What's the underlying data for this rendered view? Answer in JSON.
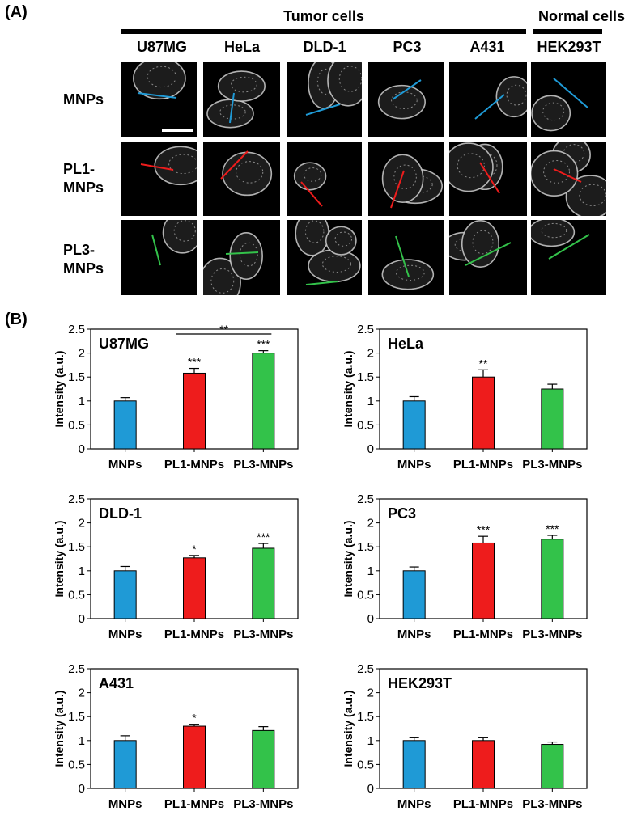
{
  "panel_a": {
    "label": "(A)",
    "groups": [
      {
        "label": "Tumor cells"
      },
      {
        "label": "Normal cells"
      }
    ],
    "columns": [
      "U87MG",
      "HeLa",
      "DLD-1",
      "PC3",
      "A431",
      "HEK293T"
    ],
    "rows": [
      {
        "lines": [
          "MNPs"
        ],
        "line_color": "#1f9ad6"
      },
      {
        "lines": [
          "PL1-",
          "MNPs"
        ],
        "line_color": "#ee1c1c"
      },
      {
        "lines": [
          "PL3-",
          "MNPs"
        ],
        "line_color": "#33c24a"
      }
    ]
  },
  "panel_b": {
    "label": "(B)"
  },
  "chart_data": [
    {
      "type": "bar",
      "title": "U87MG",
      "categories": [
        "MNPs",
        "PL1-MNPs",
        "PL3-MNPs"
      ],
      "values": [
        1.0,
        1.58,
        2.0
      ],
      "errors": [
        0.07,
        0.1,
        0.05
      ],
      "significance": [
        "",
        "***",
        "***"
      ],
      "bracket": {
        "from": 1,
        "to": 2,
        "label": "**"
      },
      "colors": [
        "#1f9ad6",
        "#ee1c1c",
        "#33c24a"
      ],
      "ylabel": "Intensity (a.u.)",
      "ylim": [
        0,
        2.5
      ],
      "yticks": [
        "0",
        "0.5",
        "1",
        "1.5",
        "2",
        "2.5"
      ]
    },
    {
      "type": "bar",
      "title": "HeLa",
      "categories": [
        "MNPs",
        "PL1-MNPs",
        "PL3-MNPs"
      ],
      "values": [
        1.0,
        1.5,
        1.25
      ],
      "errors": [
        0.09,
        0.15,
        0.1
      ],
      "significance": [
        "",
        "**",
        ""
      ],
      "colors": [
        "#1f9ad6",
        "#ee1c1c",
        "#33c24a"
      ],
      "ylabel": "Intensity (a.u.)",
      "ylim": [
        0,
        2.5
      ],
      "yticks": [
        "0",
        "0.5",
        "1",
        "1.5",
        "2",
        "2.5"
      ]
    },
    {
      "type": "bar",
      "title": "DLD-1",
      "categories": [
        "MNPs",
        "PL1-MNPs",
        "PL3-MNPs"
      ],
      "values": [
        1.0,
        1.27,
        1.47
      ],
      "errors": [
        0.09,
        0.05,
        0.1
      ],
      "significance": [
        "",
        "*",
        "***"
      ],
      "colors": [
        "#1f9ad6",
        "#ee1c1c",
        "#33c24a"
      ],
      "ylabel": "Intensity (a.u.)",
      "ylim": [
        0,
        2.5
      ],
      "yticks": [
        "0",
        "0.5",
        "1",
        "1.5",
        "2",
        "2.5"
      ]
    },
    {
      "type": "bar",
      "title": "PC3",
      "categories": [
        "MNPs",
        "PL1-MNPs",
        "PL3-MNPs"
      ],
      "values": [
        1.0,
        1.58,
        1.66
      ],
      "errors": [
        0.08,
        0.14,
        0.08
      ],
      "significance": [
        "",
        "***",
        "***"
      ],
      "colors": [
        "#1f9ad6",
        "#ee1c1c",
        "#33c24a"
      ],
      "ylabel": "Intensity (a.u.)",
      "ylim": [
        0,
        2.5
      ],
      "yticks": [
        "0",
        "0.5",
        "1",
        "1.5",
        "2",
        "2.5"
      ]
    },
    {
      "type": "bar",
      "title": "A431",
      "categories": [
        "MNPs",
        "PL1-MNPs",
        "PL3-MNPs"
      ],
      "values": [
        1.0,
        1.3,
        1.21
      ],
      "errors": [
        0.1,
        0.04,
        0.08
      ],
      "significance": [
        "",
        "*",
        ""
      ],
      "colors": [
        "#1f9ad6",
        "#ee1c1c",
        "#33c24a"
      ],
      "ylabel": "Intensity (a.u.)",
      "ylim": [
        0,
        2.5
      ],
      "yticks": [
        "0",
        "0.5",
        "1",
        "1.5",
        "2",
        "2.5"
      ]
    },
    {
      "type": "bar",
      "title": "HEK293T",
      "categories": [
        "MNPs",
        "PL1-MNPs",
        "PL3-MNPs"
      ],
      "values": [
        1.0,
        1.0,
        0.92
      ],
      "errors": [
        0.07,
        0.07,
        0.05
      ],
      "significance": [
        "",
        "",
        ""
      ],
      "colors": [
        "#1f9ad6",
        "#ee1c1c",
        "#33c24a"
      ],
      "ylabel": "Intensity (a.u.)",
      "ylim": [
        0,
        2.5
      ],
      "yticks": [
        "0",
        "0.5",
        "1",
        "1.5",
        "2",
        "2.5"
      ]
    }
  ]
}
